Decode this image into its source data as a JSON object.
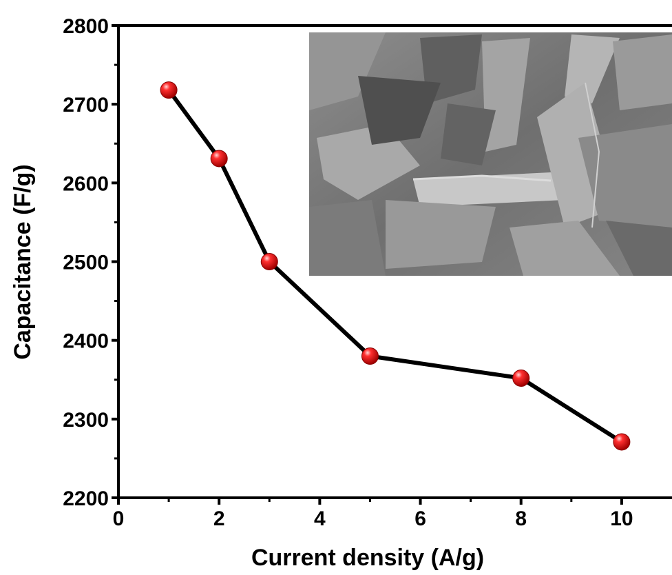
{
  "chart_data": {
    "type": "line",
    "xlabel": "Current density (A/g)",
    "ylabel": "Capacitance (F/g)",
    "xlim": [
      0,
      11
    ],
    "ylim": [
      2200,
      2800
    ],
    "x_ticks": [
      0,
      2,
      4,
      6,
      8,
      10
    ],
    "x_tick_labels": [
      "0",
      "2",
      "4",
      "6",
      "8",
      "10"
    ],
    "y_ticks": [
      2200,
      2300,
      2400,
      2500,
      2600,
      2700,
      2800
    ],
    "y_tick_labels": [
      "2200",
      "2300",
      "2400",
      "2500",
      "2600",
      "2700",
      "2800"
    ],
    "grid": false,
    "series": [
      {
        "x": [
          1,
          2,
          3,
          5,
          8,
          10
        ],
        "y": [
          2718,
          2631,
          2500,
          2380,
          2352,
          2271
        ],
        "line_color": "#000000",
        "marker_color": "#e8141a"
      }
    ],
    "inset": {
      "type": "SEM micrograph image (grayscale nanosheets)",
      "background": "#7a7a7a"
    }
  }
}
